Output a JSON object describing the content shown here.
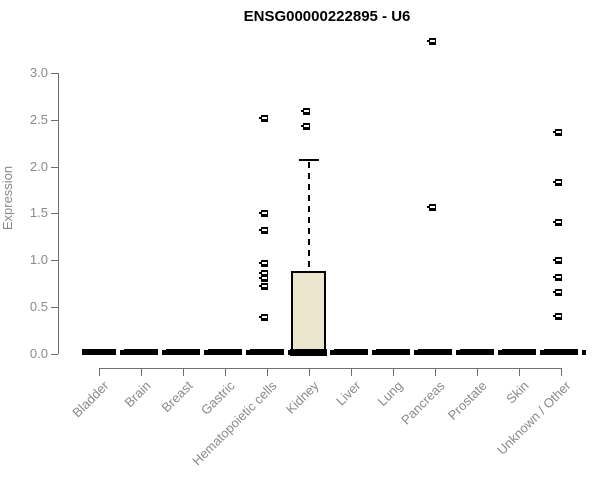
{
  "colors": {
    "background": "#ffffff",
    "title_text": "#000000",
    "axis_line": "#6f6f6f",
    "axis_text": "#8a8a8a",
    "box_fill": "#EBE5CD",
    "box_border": "#000000",
    "whisker": "#000000",
    "outlier": "#000000"
  },
  "chart_data": {
    "type": "boxplot",
    "title": "ENSG00000222895 - U6",
    "xlabel": "",
    "ylabel": "Expression",
    "ylim": [
      0,
      3.0
    ],
    "grid": false,
    "legend": false,
    "yticks": [
      "0.0",
      "0.5",
      "1.0",
      "1.5",
      "2.0",
      "2.5",
      "3.0"
    ],
    "categories": [
      "Bladder",
      "Brain",
      "Breast",
      "Gastric",
      "Hematopoietic cells",
      "Kidney",
      "Liver",
      "Lung",
      "Pancreas",
      "Prostate",
      "Skin",
      "Unknown / Other"
    ],
    "series": [
      {
        "name": "Bladder",
        "low": 0,
        "q1": 0,
        "median": 0,
        "q3": 0,
        "high": 0,
        "outliers": []
      },
      {
        "name": "Brain",
        "low": 0,
        "q1": 0,
        "median": 0,
        "q3": 0,
        "high": 0,
        "outliers": []
      },
      {
        "name": "Breast",
        "low": 0,
        "q1": 0,
        "median": 0,
        "q3": 0,
        "high": 0,
        "outliers": []
      },
      {
        "name": "Gastric",
        "low": 0,
        "q1": 0,
        "median": 0,
        "q3": 0,
        "high": 0,
        "outliers": []
      },
      {
        "name": "Hematopoietic cells",
        "low": 0,
        "q1": 0,
        "median": 0,
        "q3": 0,
        "high": 0,
        "outliers": [
          0.38,
          0.72,
          0.8,
          0.85,
          0.96,
          1.31,
          1.49,
          2.51
        ]
      },
      {
        "name": "Kidney",
        "low": 0,
        "q1": 0,
        "median": 0,
        "q3": 0.89,
        "high": 2.06,
        "outliers": [
          2.42,
          2.58
        ]
      },
      {
        "name": "Liver",
        "low": 0,
        "q1": 0,
        "median": 0,
        "q3": 0,
        "high": 0,
        "outliers": []
      },
      {
        "name": "Lung",
        "low": 0,
        "q1": 0,
        "median": 0,
        "q3": 0,
        "high": 0,
        "outliers": []
      },
      {
        "name": "Pancreas",
        "low": 0,
        "q1": 0,
        "median": 0,
        "q3": 0,
        "high": 0,
        "outliers": [
          1.56,
          3.33
        ]
      },
      {
        "name": "Prostate",
        "low": 0,
        "q1": 0,
        "median": 0,
        "q3": 0,
        "high": 0,
        "outliers": []
      },
      {
        "name": "Skin",
        "low": 0,
        "q1": 0,
        "median": 0,
        "q3": 0,
        "high": 0,
        "outliers": []
      },
      {
        "name": "Unknown / Other",
        "low": 0,
        "q1": 0,
        "median": 0,
        "q3": 0,
        "high": 0,
        "outliers": [
          0.4,
          0.65,
          0.81,
          0.99,
          1.4,
          1.83,
          2.36
        ]
      }
    ]
  }
}
